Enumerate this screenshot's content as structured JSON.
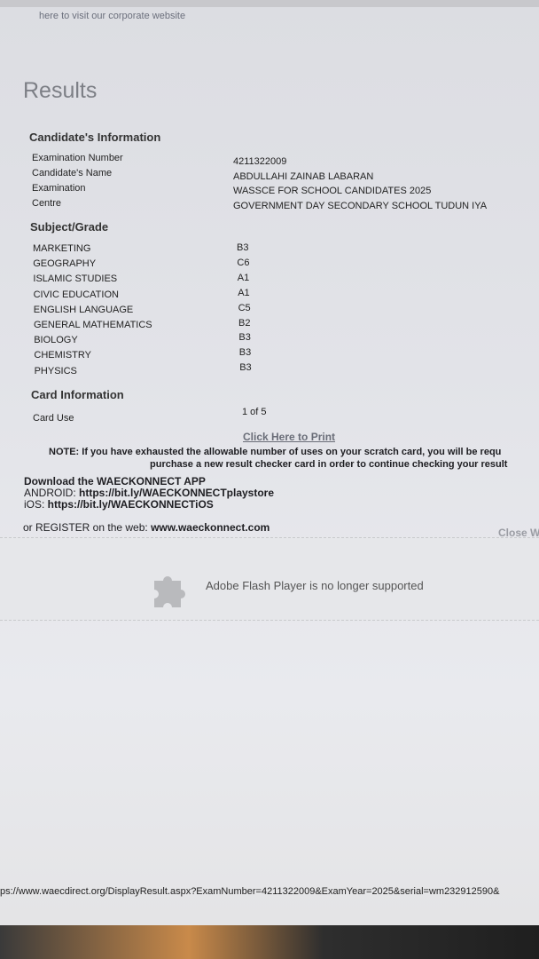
{
  "header": {
    "corporate_link": "here to visit our corporate website"
  },
  "title": "Results",
  "candidate": {
    "heading": "Candidate's Information",
    "fields": [
      {
        "label": "Examination Number",
        "value": "4211322009"
      },
      {
        "label": "Candidate's Name",
        "value": "ABDULLAHI ZAINAB LABARAN"
      },
      {
        "label": "Examination",
        "value": "WASSCE FOR SCHOOL CANDIDATES 2025"
      },
      {
        "label": "Centre",
        "value": "GOVERNMENT DAY SECONDARY SCHOOL TUDUN IYA"
      }
    ]
  },
  "subjects": {
    "heading": "Subject/Grade",
    "items": [
      {
        "subject": "MARKETING",
        "grade": "B3"
      },
      {
        "subject": "GEOGRAPHY",
        "grade": "C6"
      },
      {
        "subject": "ISLAMIC STUDIES",
        "grade": "A1"
      },
      {
        "subject": "CIVIC EDUCATION",
        "grade": "A1"
      },
      {
        "subject": "ENGLISH LANGUAGE",
        "grade": "C5"
      },
      {
        "subject": "GENERAL MATHEMATICS",
        "grade": "B2"
      },
      {
        "subject": "BIOLOGY",
        "grade": "B3"
      },
      {
        "subject": "CHEMISTRY",
        "grade": "B3"
      },
      {
        "subject": "PHYSICS",
        "grade": "B3"
      }
    ]
  },
  "card": {
    "heading": "Card Information",
    "label": "Card Use",
    "value": "1 of 5"
  },
  "print_link": "Click Here to Print",
  "note": {
    "line1": "NOTE: If you have exhausted the allowable number of uses on your scratch card, you will be requ",
    "line2": "purchase a new result checker card in order to continue checking your result"
  },
  "download": {
    "title": "Download the WAECKONNECT APP",
    "android_label": "ANDROID: ",
    "android_url": "https://bit.ly/WAECKONNECTplaystore",
    "ios_label": "iOS: ",
    "ios_url": "https://bit.ly/WAECKONNECTiOS"
  },
  "register": {
    "label": "or REGISTER on the web: ",
    "url": "www.waeckonnect.com"
  },
  "close_link": "Close W",
  "flash": {
    "message": "Adobe Flash Player is no longer supported",
    "icon": "puzzle-piece-icon"
  },
  "footer_url": "ps://www.waecdirect.org/DisplayResult.aspx?ExamNumber=4211322009&ExamYear=2025&serial=wm232912590&"
}
